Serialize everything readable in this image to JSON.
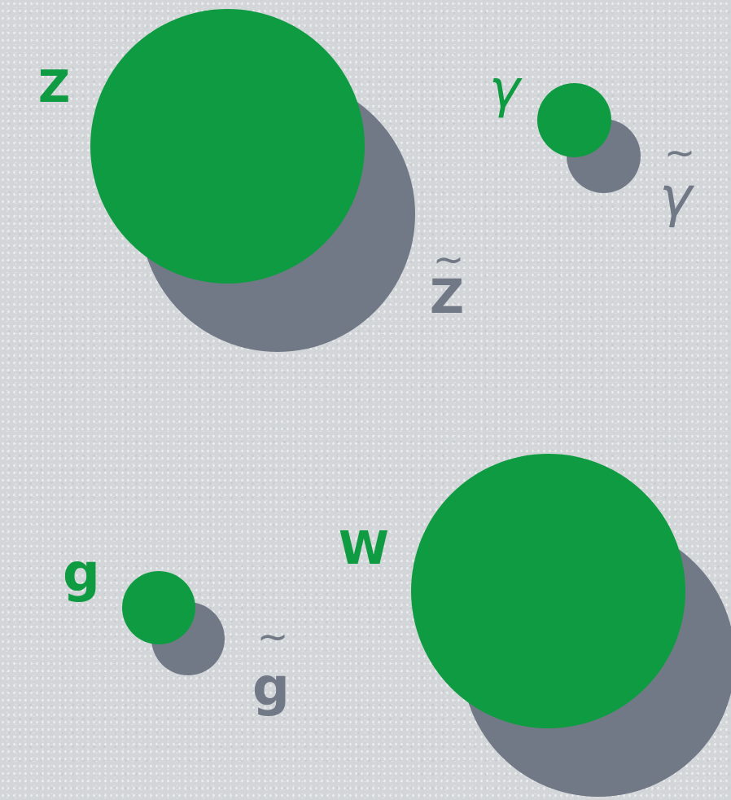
{
  "particles": {
    "z": {
      "label": "Z",
      "partner_label": "Z",
      "tilde": "~"
    },
    "gamma": {
      "label": "γ",
      "partner_label": "γ",
      "tilde": "~"
    },
    "g": {
      "label": "g",
      "partner_label": "g",
      "tilde": "~"
    },
    "w": {
      "label": "W"
    }
  },
  "colors": {
    "boson": "#0e9b41",
    "superpartner": "#727986",
    "background": "#d3d6d9"
  }
}
